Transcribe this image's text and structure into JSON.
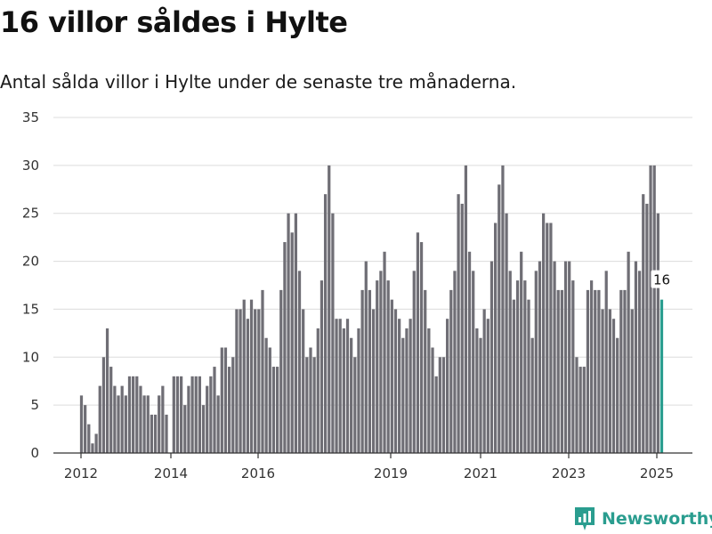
{
  "title": "16 villor såldes i Hylte",
  "subtitle": "Antal sålda villor i Hylte under de senaste tre månaderna.",
  "brand": {
    "name": "Newsworthy",
    "color": "#2a9d8f"
  },
  "chart_data": {
    "type": "bar",
    "title": "16 villor såldes i Hylte",
    "subtitle": "Antal sålda villor i Hylte under de senaste tre månaderna.",
    "xlabel": "",
    "ylabel": "",
    "ylim": [
      0,
      35
    ],
    "yticks": [
      0,
      5,
      10,
      15,
      20,
      25,
      30,
      35
    ],
    "x_tick_labels": [
      "2012",
      "2014",
      "2016",
      "2019",
      "2021",
      "2023",
      "2025"
    ],
    "grid": true,
    "bar_color": "#6f6e75",
    "highlight_color": "#2a9d8f",
    "highlight_label": "16",
    "series": [
      {
        "values": [
          6,
          5,
          3,
          1,
          2,
          7,
          10,
          13,
          9,
          7,
          6,
          7,
          6,
          8,
          8,
          8,
          7,
          6,
          6,
          4,
          4,
          6,
          7,
          4,
          0,
          8,
          8,
          8,
          5,
          7,
          8,
          8,
          8,
          5,
          7,
          8,
          9,
          6,
          11,
          11,
          9,
          10,
          15,
          15,
          16,
          14,
          16,
          15,
          15,
          17,
          12,
          11,
          9,
          9,
          17,
          22,
          25,
          23,
          25,
          19,
          15,
          10,
          11,
          10,
          13,
          18,
          27,
          30,
          25,
          14,
          14,
          13,
          14,
          12,
          10,
          13,
          17,
          20,
          17,
          15,
          18,
          19,
          21,
          18,
          16,
          15,
          14,
          12,
          13,
          14,
          19,
          23,
          22,
          17,
          13,
          11,
          8,
          10,
          10,
          14,
          17,
          19,
          27,
          26,
          30,
          21,
          19,
          13,
          12,
          15,
          14,
          20,
          24,
          28,
          30,
          25,
          19,
          16,
          18,
          21,
          18,
          16,
          12,
          19,
          20,
          25,
          24,
          24,
          20,
          17,
          17,
          20,
          20,
          18,
          10,
          9,
          9,
          17,
          18,
          17,
          17,
          15,
          19,
          15,
          14,
          12,
          17,
          17,
          21,
          15,
          20,
          19,
          27,
          26,
          30,
          30,
          25,
          16
        ]
      }
    ]
  }
}
